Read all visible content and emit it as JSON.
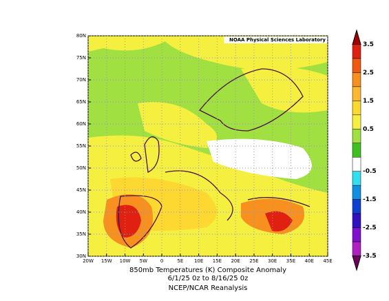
{
  "map": {
    "credit": "NOAA Physical Sciences Laboratory",
    "title": "850mb Temperatures (K)   Composite Anomaly",
    "subtitle": "6/1/25 0z  to 8/16/25 0z",
    "source": "NCEP/NCAR Reanalysis",
    "xlim": [
      -20,
      45
    ],
    "ylim": [
      30,
      80
    ],
    "xticks": [
      {
        "value": -20,
        "label": "20W"
      },
      {
        "value": -15,
        "label": "15W"
      },
      {
        "value": -10,
        "label": "10W"
      },
      {
        "value": -5,
        "label": "5W"
      },
      0,
      {
        "value": 5,
        "label": "5E"
      },
      {
        "value": 10,
        "label": "10E"
      },
      {
        "value": 15,
        "label": "15E"
      },
      {
        "value": 20,
        "label": "20E"
      },
      {
        "value": 25,
        "label": "25E"
      },
      {
        "value": 30,
        "label": "30E"
      },
      {
        "value": 35,
        "label": "35E"
      },
      {
        "value": 40,
        "label": "40E"
      },
      {
        "value": 45,
        "label": "45E"
      }
    ],
    "yticks": [
      {
        "value": 30,
        "label": "30N"
      },
      {
        "value": 35,
        "label": "35N"
      },
      {
        "value": 40,
        "label": "40N"
      },
      {
        "value": 45,
        "label": "45N"
      },
      {
        "value": 50,
        "label": "50N"
      },
      {
        "value": 55,
        "label": "55N"
      },
      {
        "value": 60,
        "label": "60N"
      },
      {
        "value": 65,
        "label": "65N"
      },
      {
        "value": 70,
        "label": "70N"
      },
      {
        "value": 75,
        "label": "75N"
      },
      {
        "value": 80,
        "label": "80N"
      }
    ],
    "grid": true
  },
  "colorbar": {
    "labels": [
      3.5,
      2.5,
      1.5,
      0.5,
      -0.5,
      -1.5,
      -2.5,
      -3.5
    ],
    "colors": [
      "#a00000",
      "#e02010",
      "#f05a10",
      "#f89020",
      "#fbb830",
      "#fcd830",
      "#f5f040",
      "#a0e040",
      "#40c020",
      "#ffffff",
      "#30e0f0",
      "#1090e0",
      "#1040d0",
      "#3010c0",
      "#8010d0",
      "#b020c0",
      "#700060"
    ]
  }
}
